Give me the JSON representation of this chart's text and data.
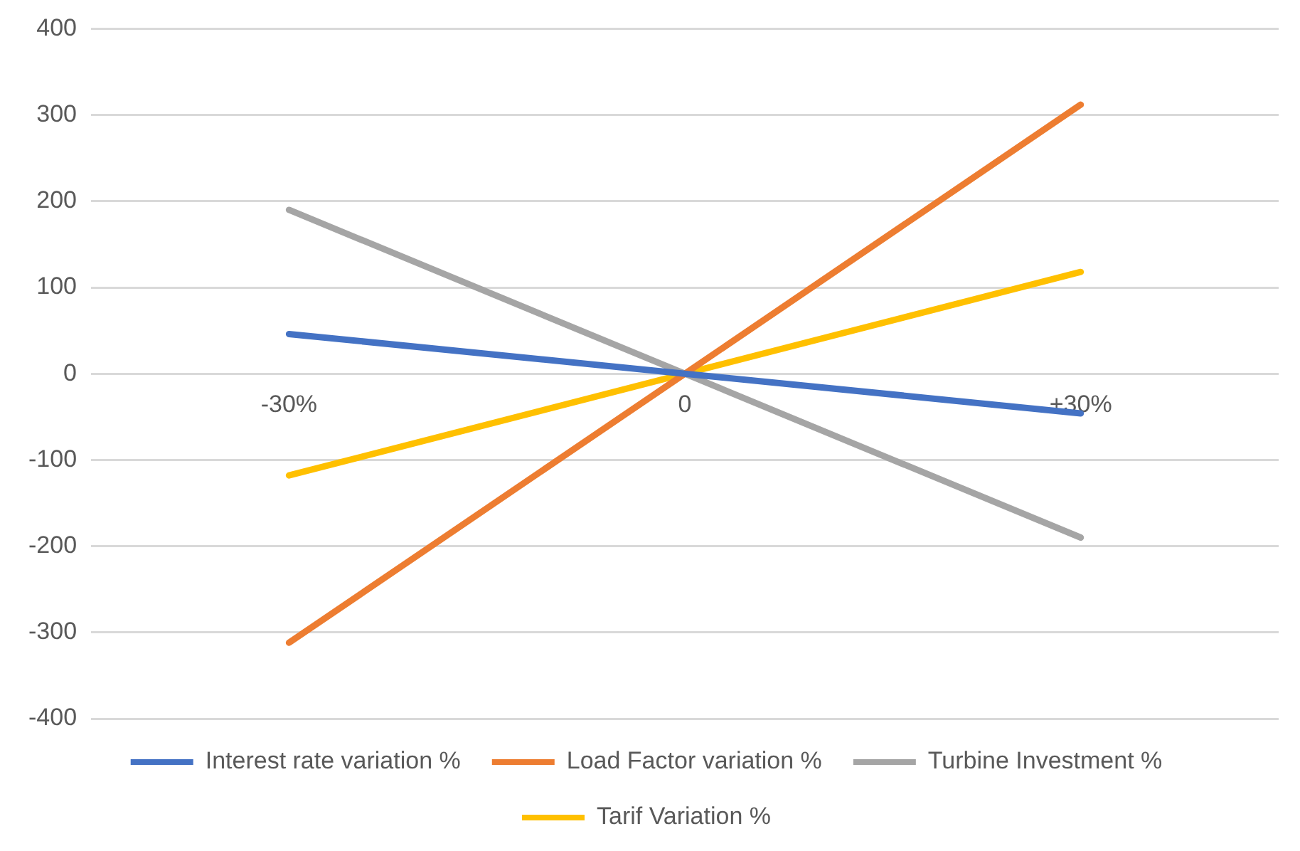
{
  "chart_data": {
    "type": "line",
    "categories": [
      "-30%",
      "0",
      "+30%"
    ],
    "series": [
      {
        "name": "Interest rate variation %",
        "color": "#4472c4",
        "values": [
          46,
          0,
          -46
        ]
      },
      {
        "name": "Load Factor variation %",
        "color": "#ed7d31",
        "values": [
          -312,
          0,
          312
        ]
      },
      {
        "name": "Turbine Investment %",
        "color": "#a5a5a5",
        "values": [
          190,
          0,
          -190
        ]
      },
      {
        "name": "Tarif Variation %",
        "color": "#ffc000",
        "values": [
          -118,
          0,
          118
        ]
      }
    ],
    "ylim": [
      -400,
      400
    ],
    "yticks": [
      -400,
      -300,
      -200,
      -100,
      0,
      100,
      200,
      300,
      400
    ],
    "grid": "y",
    "legend": "bottom",
    "marker": "none",
    "line_style": "solid"
  }
}
